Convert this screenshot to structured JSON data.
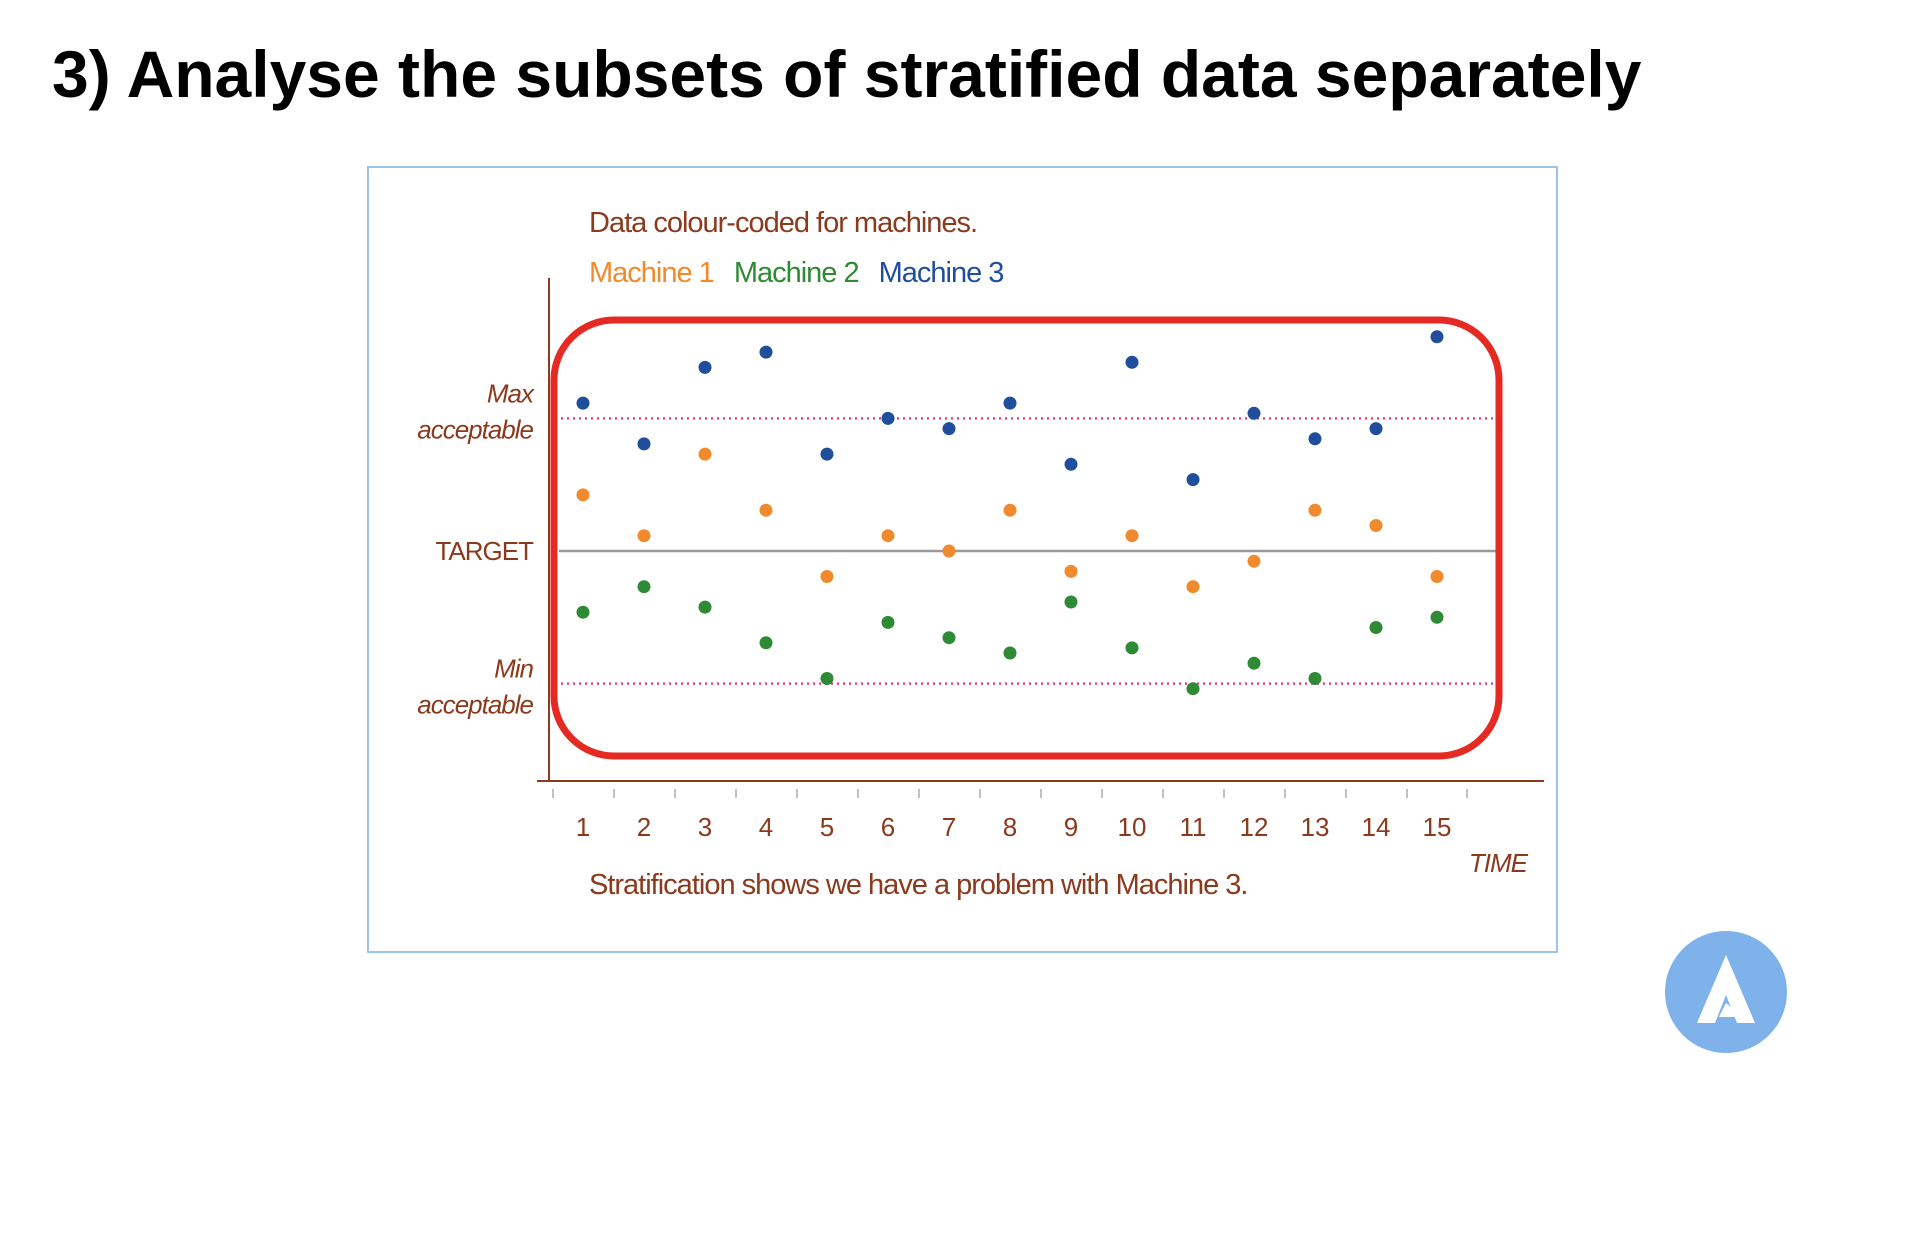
{
  "slide": {
    "title": "3) Analyse the subsets of stratified data separately"
  },
  "logo": {
    "icon": "triangle-logo-icon",
    "color": "#7fb1ea"
  },
  "chart_data": {
    "type": "scatter",
    "title": "Data colour-coded for machines.",
    "caption": "Stratification shows we have a problem with Machine 3.",
    "xlabel": "TIME",
    "ylabel": "",
    "categories": [
      "1",
      "2",
      "3",
      "4",
      "5",
      "6",
      "7",
      "8",
      "9",
      "10",
      "11",
      "12",
      "13",
      "14",
      "15"
    ],
    "reference_lines": {
      "max": {
        "label_line1": "Max",
        "label_line2": "acceptable",
        "value": 26,
        "style": "dotted",
        "color": "#d94a8a"
      },
      "target": {
        "label": "TARGET",
        "value": 0,
        "style": "solid",
        "color": "#9a9a9a"
      },
      "min": {
        "label_line1": "Min",
        "label_line2": "acceptable",
        "value": -26,
        "style": "dotted",
        "color": "#d94a8a"
      }
    },
    "ylim": [
      -45,
      45
    ],
    "grid": false,
    "legend_position": "top-left",
    "highlight_box_color": "#e42a23",
    "series": [
      {
        "name": "Machine 1",
        "color": "#f08a2c",
        "values": [
          11,
          3,
          19,
          8,
          -5,
          3,
          0,
          8,
          -4,
          3,
          -7,
          -2,
          8,
          5,
          -5
        ]
      },
      {
        "name": "Machine 2",
        "color": "#2e8a34",
        "values": [
          -12,
          -7,
          -11,
          -18,
          -25,
          -14,
          -17,
          -20,
          -10,
          -19,
          -27,
          -22,
          -25,
          -15,
          -13
        ]
      },
      {
        "name": "Machine 3",
        "color": "#1f4e9c",
        "values": [
          29,
          21,
          36,
          39,
          19,
          26,
          24,
          29,
          17,
          37,
          14,
          27,
          22,
          24,
          42
        ]
      }
    ]
  }
}
